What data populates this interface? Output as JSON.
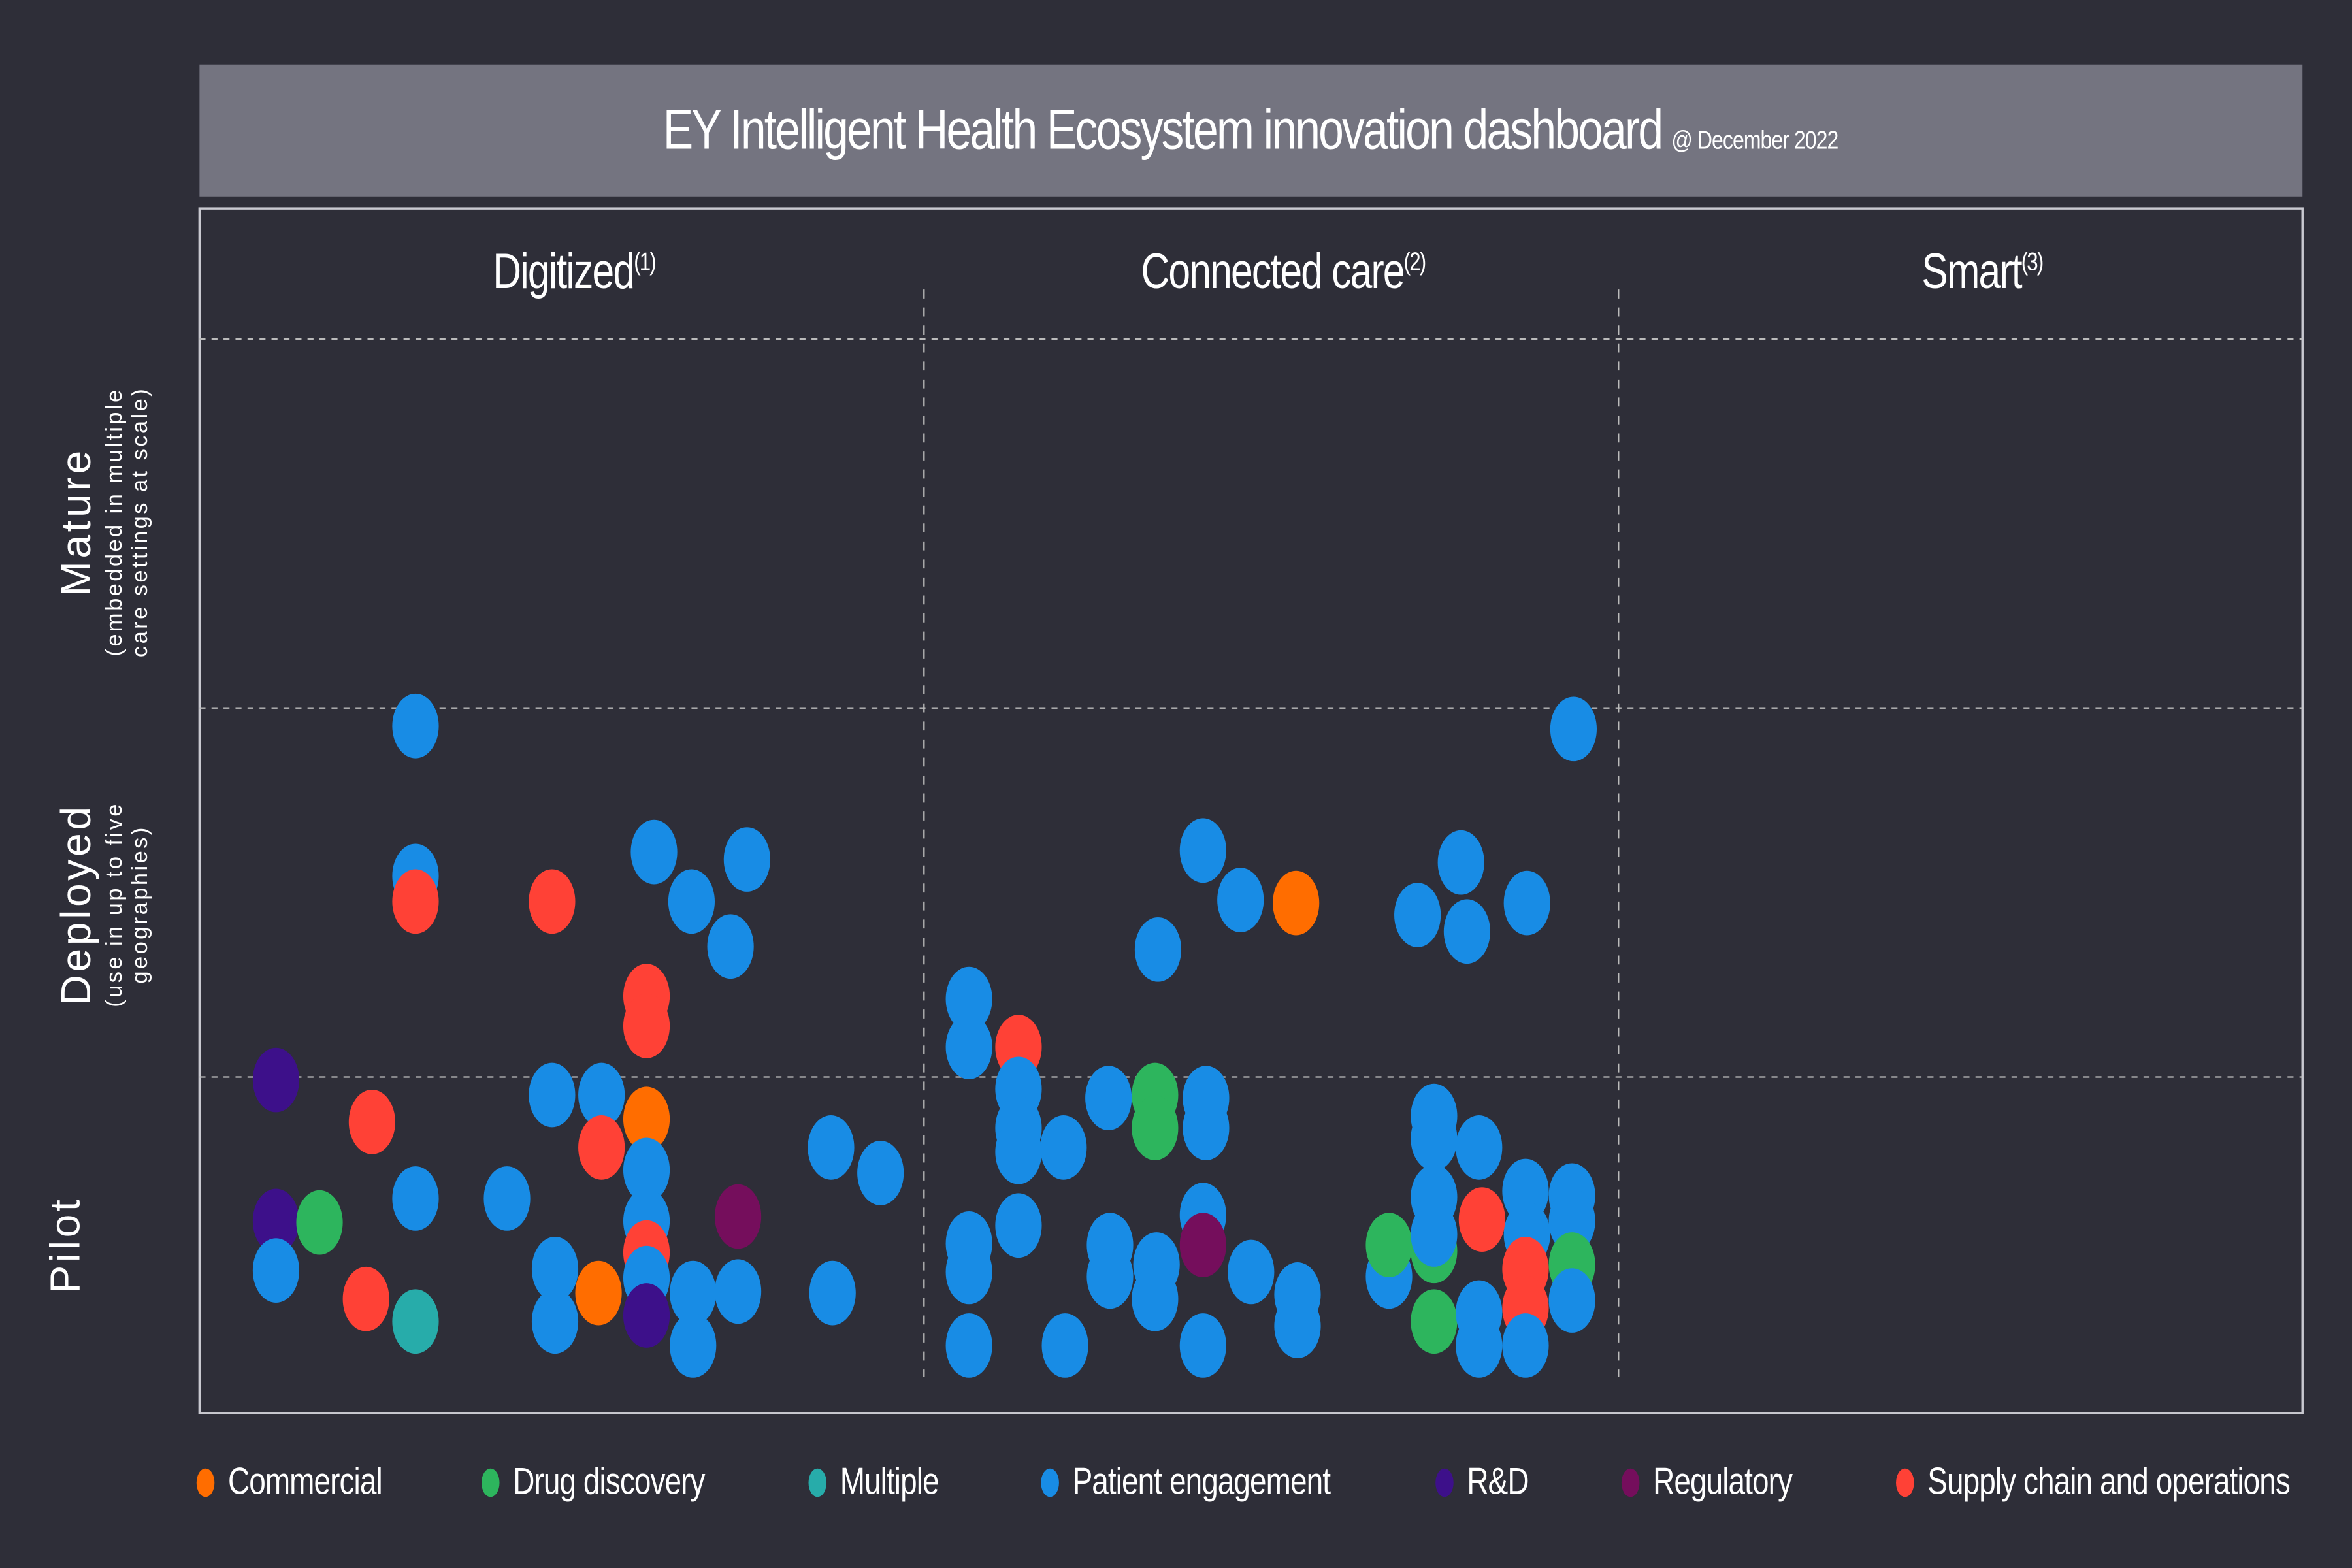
{
  "header": {
    "title": "EY Intelligent Health Ecosystem innovation dashboard",
    "date": "@ December 2022"
  },
  "chart_data": {
    "type": "scatter",
    "title": "EY Intelligent Health Ecosystem innovation dashboard",
    "subtitle": "@ December 2022",
    "columns": [
      {
        "label": "Digitized",
        "note": "(1)"
      },
      {
        "label": "Connected care",
        "note": "(2)"
      },
      {
        "label": "Smart",
        "note": "(3)"
      }
    ],
    "rows": [
      {
        "label": "Mature",
        "sub1": "(embedded in multiple",
        "sub2": "care settings at scale)"
      },
      {
        "label": "Deployed",
        "sub1": "(use in up to five",
        "sub2": "geographies)"
      },
      {
        "label": "Pilot",
        "sub1": "",
        "sub2": ""
      }
    ],
    "grid": true,
    "legend_position": "bottom",
    "legend": [
      {
        "name": "Commercial",
        "color": "#ff6d00"
      },
      {
        "name": "Drug discovery",
        "color": "#2db55d"
      },
      {
        "name": "Multiple",
        "color": "#27acaa"
      },
      {
        "name": "Patient engagement",
        "color": "#188ce5"
      },
      {
        "name": "R&D",
        "color": "#3d108a"
      },
      {
        "name": "Regulatory",
        "color": "#750e5c"
      },
      {
        "name": "Supply chain and operations",
        "color": "#ff4136"
      }
    ],
    "points": [
      {
        "category": "Patient engagement",
        "column": "Digitized",
        "stage": "Deployed"
      },
      {
        "category": "Patient engagement",
        "column": "Digitized",
        "stage": "Deployed"
      },
      {
        "category": "Supply chain and operations",
        "column": "Digitized",
        "stage": "Deployed"
      },
      {
        "category": "Supply chain and operations",
        "column": "Digitized",
        "stage": "Deployed"
      },
      {
        "category": "Patient engagement",
        "column": "Digitized",
        "stage": "Deployed"
      },
      {
        "category": "Patient engagement",
        "column": "Digitized",
        "stage": "Deployed"
      },
      {
        "category": "Patient engagement",
        "column": "Digitized",
        "stage": "Deployed"
      },
      {
        "category": "Patient engagement",
        "column": "Digitized",
        "stage": "Deployed"
      },
      {
        "category": "Supply chain and operations",
        "column": "Digitized",
        "stage": "Deployed"
      },
      {
        "category": "Supply chain and operations",
        "column": "Digitized",
        "stage": "Deployed"
      },
      {
        "category": "R&D",
        "column": "Digitized",
        "stage": "Pilot"
      },
      {
        "category": "Supply chain and operations",
        "column": "Digitized",
        "stage": "Pilot"
      },
      {
        "category": "Patient engagement",
        "column": "Digitized",
        "stage": "Pilot"
      },
      {
        "category": "Patient engagement",
        "column": "Digitized",
        "stage": "Pilot"
      },
      {
        "category": "Commercial",
        "column": "Digitized",
        "stage": "Pilot"
      },
      {
        "category": "Supply chain and operations",
        "column": "Digitized",
        "stage": "Pilot"
      },
      {
        "category": "Patient engagement",
        "column": "Digitized",
        "stage": "Pilot"
      },
      {
        "category": "Patient engagement",
        "column": "Digitized",
        "stage": "Pilot"
      },
      {
        "category": "Patient engagement",
        "column": "Digitized",
        "stage": "Pilot"
      },
      {
        "category": "R&D",
        "column": "Digitized",
        "stage": "Pilot"
      },
      {
        "category": "Drug discovery",
        "column": "Digitized",
        "stage": "Pilot"
      },
      {
        "category": "Patient engagement",
        "column": "Digitized",
        "stage": "Pilot"
      },
      {
        "category": "Patient engagement",
        "column": "Digitized",
        "stage": "Pilot"
      },
      {
        "category": "Patient engagement",
        "column": "Digitized",
        "stage": "Pilot"
      },
      {
        "category": "Patient engagement",
        "column": "Digitized",
        "stage": "Pilot"
      },
      {
        "category": "Regulatory",
        "column": "Digitized",
        "stage": "Pilot"
      },
      {
        "category": "Supply chain and operations",
        "column": "Digitized",
        "stage": "Pilot"
      },
      {
        "category": "Multiple",
        "column": "Digitized",
        "stage": "Pilot"
      },
      {
        "category": "Patient engagement",
        "column": "Digitized",
        "stage": "Pilot"
      },
      {
        "category": "Patient engagement",
        "column": "Digitized",
        "stage": "Pilot"
      },
      {
        "category": "Commercial",
        "column": "Digitized",
        "stage": "Pilot"
      },
      {
        "category": "Supply chain and operations",
        "column": "Digitized",
        "stage": "Pilot"
      },
      {
        "category": "Patient engagement",
        "column": "Digitized",
        "stage": "Pilot"
      },
      {
        "category": "R&D",
        "column": "Digitized",
        "stage": "Pilot"
      },
      {
        "category": "Patient engagement",
        "column": "Digitized",
        "stage": "Pilot"
      },
      {
        "category": "Patient engagement",
        "column": "Digitized",
        "stage": "Pilot"
      },
      {
        "category": "Patient engagement",
        "column": "Digitized",
        "stage": "Pilot"
      },
      {
        "category": "Patient engagement",
        "column": "Digitized",
        "stage": "Pilot"
      },
      {
        "category": "Patient engagement",
        "column": "Connected care",
        "stage": "Deployed"
      },
      {
        "category": "Patient engagement",
        "column": "Connected care",
        "stage": "Deployed"
      },
      {
        "category": "Commercial",
        "column": "Connected care",
        "stage": "Deployed"
      },
      {
        "category": "Patient engagement",
        "column": "Connected care",
        "stage": "Deployed"
      },
      {
        "category": "Patient engagement",
        "column": "Connected care",
        "stage": "Deployed"
      },
      {
        "category": "Patient engagement",
        "column": "Connected care",
        "stage": "Deployed"
      },
      {
        "category": "Patient engagement",
        "column": "Connected care",
        "stage": "Deployed"
      },
      {
        "category": "Patient engagement",
        "column": "Connected care",
        "stage": "Deployed"
      },
      {
        "category": "Patient engagement",
        "column": "Connected care",
        "stage": "Deployed"
      },
      {
        "category": "Patient engagement",
        "column": "Connected care",
        "stage": "Deployed"
      },
      {
        "category": "Patient engagement",
        "column": "Connected care",
        "stage": "Deployed"
      },
      {
        "category": "Supply chain and operations",
        "column": "Connected care",
        "stage": "Deployed"
      },
      {
        "category": "Patient engagement",
        "column": "Connected care",
        "stage": "Pilot"
      },
      {
        "category": "Patient engagement",
        "column": "Connected care",
        "stage": "Pilot"
      },
      {
        "category": "Patient engagement",
        "column": "Connected care",
        "stage": "Pilot"
      },
      {
        "category": "Patient engagement",
        "column": "Connected care",
        "stage": "Pilot"
      },
      {
        "category": "Patient engagement",
        "column": "Connected care",
        "stage": "Pilot"
      },
      {
        "category": "Drug discovery",
        "column": "Connected care",
        "stage": "Pilot"
      },
      {
        "category": "Drug discovery",
        "column": "Connected care",
        "stage": "Pilot"
      },
      {
        "category": "Patient engagement",
        "column": "Connected care",
        "stage": "Pilot"
      },
      {
        "category": "Patient engagement",
        "column": "Connected care",
        "stage": "Pilot"
      },
      {
        "category": "Patient engagement",
        "column": "Connected care",
        "stage": "Pilot"
      },
      {
        "category": "Patient engagement",
        "column": "Connected care",
        "stage": "Pilot"
      },
      {
        "category": "Patient engagement",
        "column": "Connected care",
        "stage": "Pilot"
      },
      {
        "category": "Patient engagement",
        "column": "Connected care",
        "stage": "Pilot"
      },
      {
        "category": "Patient engagement",
        "column": "Connected care",
        "stage": "Pilot"
      },
      {
        "category": "Patient engagement",
        "column": "Connected care",
        "stage": "Pilot"
      },
      {
        "category": "Patient engagement",
        "column": "Connected care",
        "stage": "Pilot"
      },
      {
        "category": "Patient engagement",
        "column": "Connected care",
        "stage": "Pilot"
      },
      {
        "category": "Patient engagement",
        "column": "Connected care",
        "stage": "Pilot"
      },
      {
        "category": "Patient engagement",
        "column": "Connected care",
        "stage": "Pilot"
      },
      {
        "category": "Regulatory",
        "column": "Connected care",
        "stage": "Pilot"
      },
      {
        "category": "Patient engagement",
        "column": "Connected care",
        "stage": "Pilot"
      },
      {
        "category": "Patient engagement",
        "column": "Connected care",
        "stage": "Pilot"
      },
      {
        "category": "Patient engagement",
        "column": "Connected care",
        "stage": "Pilot"
      },
      {
        "category": "Patient engagement",
        "column": "Connected care",
        "stage": "Pilot"
      },
      {
        "category": "Patient engagement",
        "column": "Connected care",
        "stage": "Pilot"
      },
      {
        "category": "Patient engagement",
        "column": "Connected care",
        "stage": "Pilot"
      },
      {
        "category": "Patient engagement",
        "column": "Connected care",
        "stage": "Pilot"
      },
      {
        "category": "Patient engagement",
        "column": "Connected care",
        "stage": "Pilot"
      },
      {
        "category": "Patient engagement",
        "column": "Connected care",
        "stage": "Pilot"
      },
      {
        "category": "Drug discovery",
        "column": "Connected care",
        "stage": "Pilot"
      },
      {
        "category": "Drug discovery",
        "column": "Connected care",
        "stage": "Pilot"
      },
      {
        "category": "Patient engagement",
        "column": "Connected care",
        "stage": "Pilot"
      },
      {
        "category": "Supply chain and operations",
        "column": "Connected care",
        "stage": "Pilot"
      },
      {
        "category": "Patient engagement",
        "column": "Connected care",
        "stage": "Pilot"
      },
      {
        "category": "Patient engagement",
        "column": "Connected care",
        "stage": "Pilot"
      },
      {
        "category": "Patient engagement",
        "column": "Connected care",
        "stage": "Pilot"
      },
      {
        "category": "Patient engagement",
        "column": "Connected care",
        "stage": "Pilot"
      },
      {
        "category": "Drug discovery",
        "column": "Connected care",
        "stage": "Pilot"
      },
      {
        "category": "Patient engagement",
        "column": "Connected care",
        "stage": "Pilot"
      },
      {
        "category": "Supply chain and operations",
        "column": "Connected care",
        "stage": "Pilot"
      },
      {
        "category": "Supply chain and operations",
        "column": "Connected care",
        "stage": "Pilot"
      },
      {
        "category": "Drug discovery",
        "column": "Connected care",
        "stage": "Pilot"
      },
      {
        "category": "Patient engagement",
        "column": "Connected care",
        "stage": "Pilot"
      },
      {
        "category": "Patient engagement",
        "column": "Connected care",
        "stage": "Pilot"
      },
      {
        "category": "Patient engagement",
        "column": "Connected care",
        "stage": "Pilot"
      }
    ]
  }
}
